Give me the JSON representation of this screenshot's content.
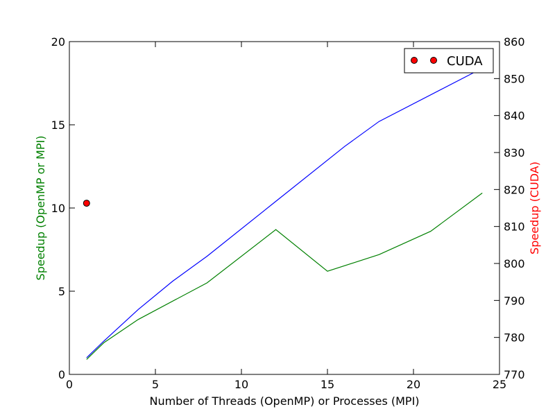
{
  "chart_data": {
    "type": "line",
    "xlabel": "Number of Threads (OpenMP) or Processes (MPI)",
    "ylabel_left": "Speedup (OpenMP or MPI)",
    "ylabel_right": "Speedup (CUDA)",
    "xlim": [
      0,
      25
    ],
    "ylim_left": [
      0,
      20
    ],
    "ylim_right": [
      770,
      860
    ],
    "xticks": [
      0,
      5,
      10,
      15,
      20,
      25
    ],
    "yticks_left": [
      0,
      5,
      10,
      15,
      20
    ],
    "yticks_right": [
      770,
      780,
      790,
      800,
      810,
      820,
      830,
      840,
      850,
      860
    ],
    "grid": false,
    "legend_position": "top-right",
    "colors": {
      "left_label": "#008000",
      "right_label": "#ff0000"
    },
    "series": [
      {
        "axis": "left",
        "color": "#0000ff",
        "x": [
          1,
          2,
          4,
          6,
          8,
          12,
          16,
          18,
          24
        ],
        "y": [
          1.0,
          2.0,
          3.9,
          5.6,
          7.1,
          10.4,
          13.7,
          15.2,
          18.4
        ]
      },
      {
        "axis": "left",
        "color": "#008000",
        "x": [
          1,
          2,
          4,
          8,
          12,
          15,
          18,
          21,
          24
        ],
        "y": [
          0.9,
          1.9,
          3.3,
          5.5,
          8.7,
          6.2,
          7.2,
          8.6,
          10.9
        ]
      },
      {
        "name": "CUDA",
        "axis": "right",
        "color": "#ff0000",
        "marker": "circle",
        "x": [
          1
        ],
        "y": [
          816.3
        ]
      }
    ]
  }
}
